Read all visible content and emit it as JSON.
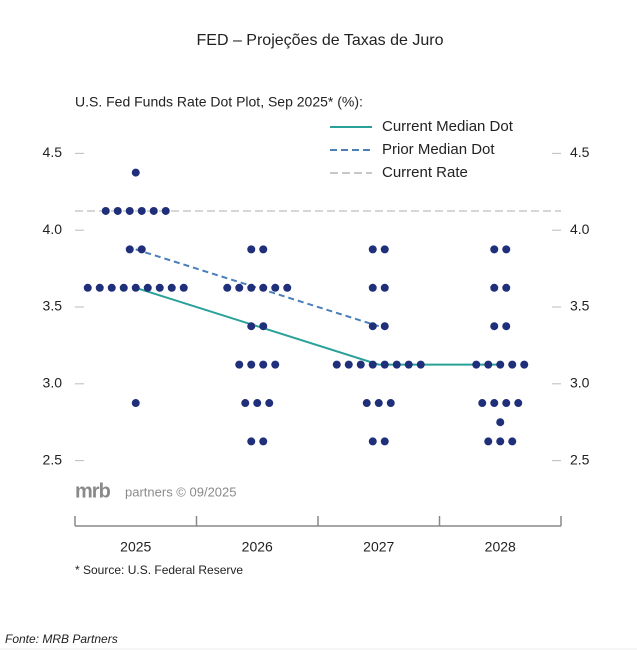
{
  "page_title": "FED – Projeções de Taxas de Juro",
  "chart_data": {
    "type": "dot",
    "title": "U.S. Fed Funds Rate Dot Plot, Sep 2025* (%):",
    "categories": [
      "2025",
      "2026",
      "2027",
      "2028"
    ],
    "dots": [
      [
        4.375,
        4.125,
        4.125,
        4.125,
        4.125,
        4.125,
        4.125,
        3.875,
        3.875,
        3.625,
        3.625,
        3.625,
        3.625,
        3.625,
        3.625,
        3.625,
        3.625,
        3.625,
        2.875
      ],
      [
        3.875,
        3.875,
        3.625,
        3.625,
        3.625,
        3.625,
        3.625,
        3.625,
        3.375,
        3.375,
        3.125,
        3.125,
        3.125,
        3.125,
        2.875,
        2.875,
        2.875,
        2.625,
        2.625
      ],
      [
        3.875,
        3.875,
        3.625,
        3.625,
        3.375,
        3.375,
        3.125,
        3.125,
        3.125,
        3.125,
        3.125,
        3.125,
        3.125,
        3.125,
        2.875,
        2.875,
        2.875,
        2.625,
        2.625
      ],
      [
        3.875,
        3.875,
        3.625,
        3.625,
        3.375,
        3.375,
        3.125,
        3.125,
        3.125,
        3.125,
        3.125,
        2.875,
        2.875,
        2.875,
        2.875,
        2.75,
        2.625,
        2.625,
        2.625
      ]
    ],
    "dot_color": "#1f2f7a",
    "series": [
      {
        "name": "Current Median Dot",
        "color": "#2aa198",
        "dash": false,
        "values": [
          3.625,
          3.375,
          3.125,
          3.125
        ]
      },
      {
        "name": "Prior Median Dot",
        "color": "#4a7fb8",
        "dash": true,
        "values": [
          3.875,
          3.625,
          3.375,
          null
        ]
      }
    ],
    "reference_line": {
      "name": "Current Rate",
      "value": 4.125,
      "color": "#c8c8c8"
    },
    "ylim": [
      2.4,
      4.6
    ],
    "yticks": [
      2.5,
      {
        "value": 3,
        "label": "3.0"
      },
      3.5,
      {
        "value": 4,
        "label": "4.0"
      },
      4.5
    ],
    "logo": "mrb",
    "logo_suffix": "partners © 09/2025",
    "footnote": "*  Source: U.S. Federal Reserve"
  },
  "source": "Fonte: MRB Partners"
}
